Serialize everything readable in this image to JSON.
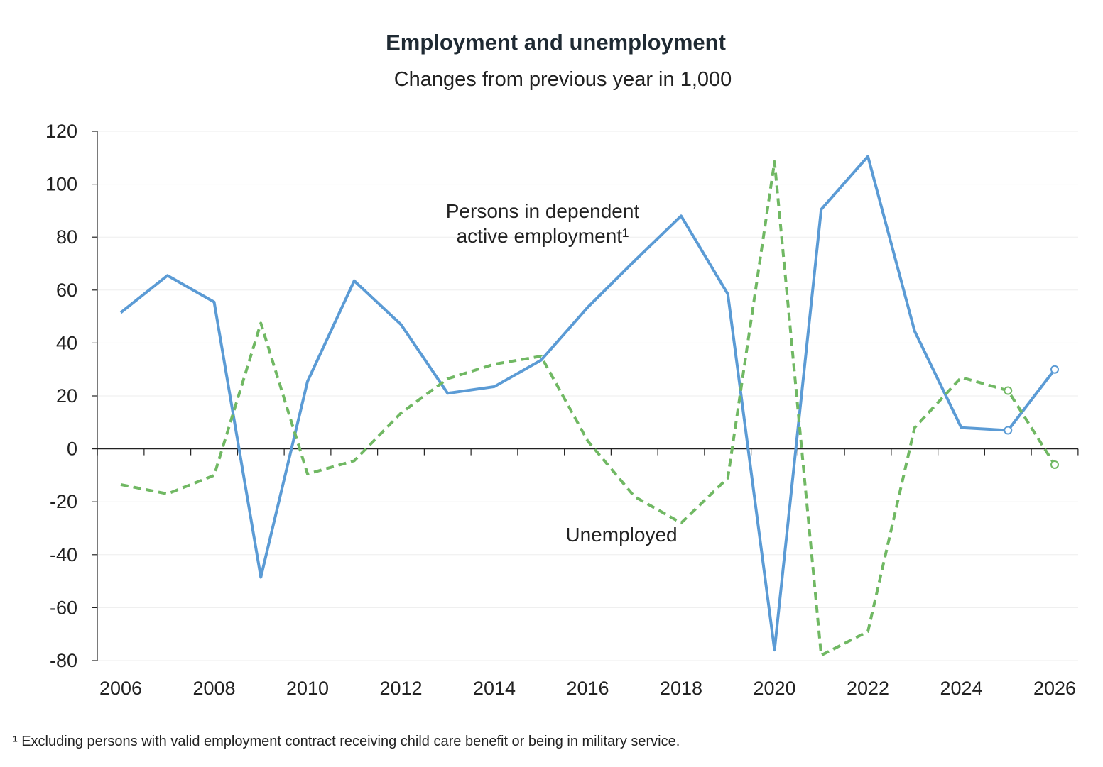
{
  "chart_data": {
    "type": "line",
    "title": "Employment and unemployment",
    "subtitle": "Changes from previous year in 1,000",
    "x": [
      2006,
      2007,
      2008,
      2009,
      2010,
      2011,
      2012,
      2013,
      2014,
      2015,
      2016,
      2017,
      2018,
      2019,
      2020,
      2021,
      2022,
      2023,
      2024,
      2025,
      2026
    ],
    "x_tick_labels": [
      "2006",
      "2008",
      "2010",
      "2012",
      "2014",
      "2016",
      "2018",
      "2020",
      "2022",
      "2024",
      "2026"
    ],
    "y_tick_labels": [
      "120",
      "100",
      "80",
      "60",
      "40",
      "20",
      "0",
      "-20",
      "-40",
      "-60",
      "-80"
    ],
    "ylim": [
      -80,
      120
    ],
    "xlim": [
      2006,
      2026
    ],
    "grid": true,
    "series": [
      {
        "name": "Persons in dependent active employment¹",
        "label_lines": [
          "Persons in dependent",
          "active employment¹"
        ],
        "color": "#5b9bd5",
        "style": "solid",
        "forecast_markers_from": 2025,
        "values": [
          51.5,
          65.5,
          55.5,
          -48.5,
          25.5,
          63.5,
          47,
          21,
          23.5,
          33.5,
          53.5,
          71,
          88,
          58.5,
          -76,
          90.5,
          110.5,
          44.5,
          8,
          7,
          30
        ]
      },
      {
        "name": "Unemployed",
        "label_lines": [
          "Unemployed"
        ],
        "color": "#70b863",
        "style": "dashed",
        "forecast_markers_from": 2025,
        "values": [
          -13.5,
          -17,
          -10,
          47.5,
          -9.5,
          -4.5,
          13.5,
          26.5,
          32,
          35,
          3,
          -18,
          -28,
          -11,
          108.5,
          -78,
          -69,
          8,
          27,
          22,
          -6
        ]
      }
    ]
  },
  "footnote": "¹ Excluding persons with valid employment contract receiving child care benefit or being in military service."
}
